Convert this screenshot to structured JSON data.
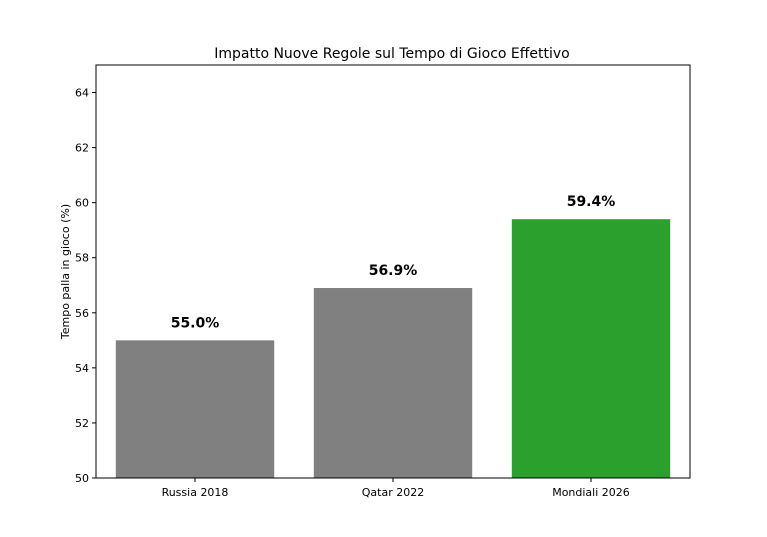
{
  "chart_data": {
    "type": "bar",
    "title": "Impatto Nuove Regole sul Tempo di Gioco Effettivo",
    "xlabel": "",
    "ylabel": "Tempo palla in gioco (%)",
    "categories": [
      "Russia 2018",
      "Qatar 2022",
      "Mondiali 2026"
    ],
    "values": [
      55.0,
      56.9,
      59.4
    ],
    "data_labels": [
      "55.0%",
      "56.9%",
      "59.4%"
    ],
    "colors": [
      "#808080",
      "#808080",
      "#2ca02c"
    ],
    "ylim": [
      50,
      65
    ],
    "yticks": [
      50,
      52,
      54,
      56,
      58,
      60,
      62,
      64
    ],
    "grid": false,
    "legend": "none"
  }
}
